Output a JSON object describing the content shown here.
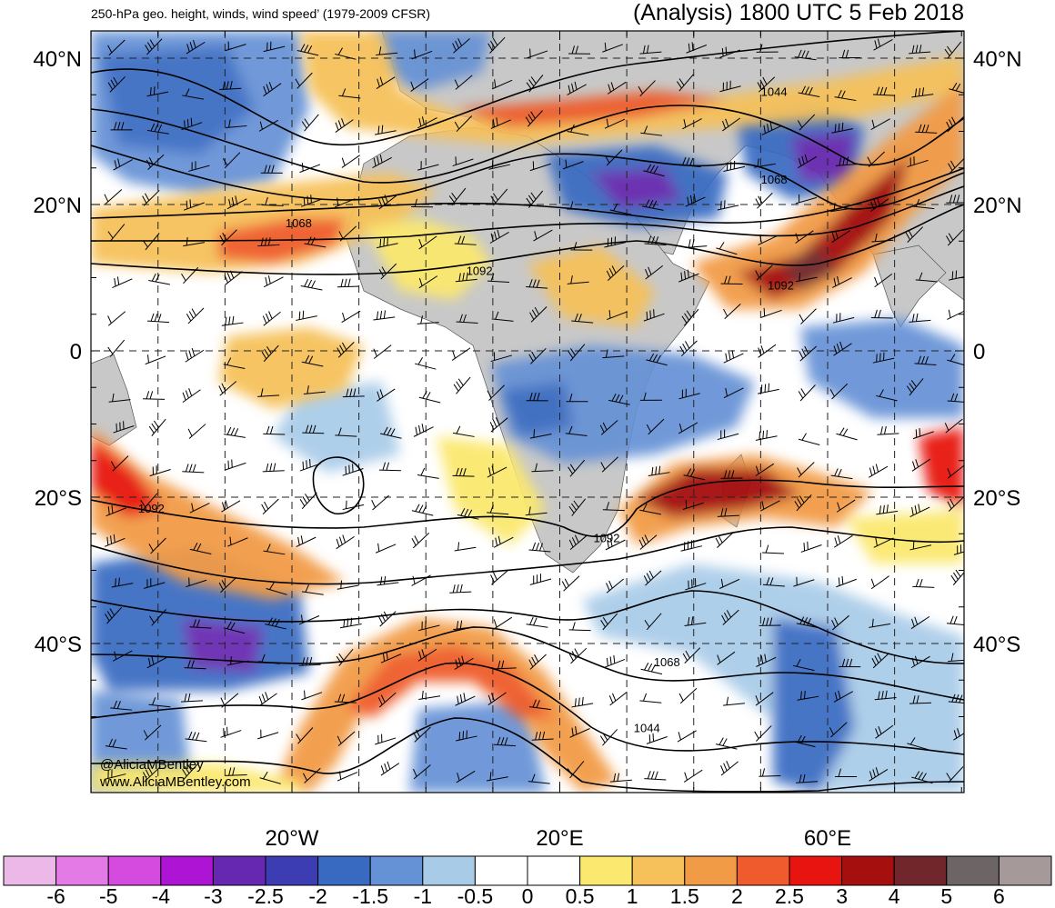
{
  "title_left": "250-hPa geo. height, winds, wind speed’ (1979-2009 CFSR)",
  "title_right": "(Analysis) 1800 UTC 5 Feb 2018",
  "credits": [
    "@AliciaMBentley",
    "www.AliciaMBentley.com"
  ],
  "lat_labels": [
    {
      "text": "40°N",
      "lat": 40
    },
    {
      "text": "20°N",
      "lat": 20
    },
    {
      "text": "0",
      "lat": 0
    },
    {
      "text": "20°S",
      "lat": -20
    },
    {
      "text": "40°S",
      "lat": -40
    }
  ],
  "lon_labels": [
    {
      "text": "20°W",
      "lon": -20
    },
    {
      "text": "20°E",
      "lon": 20
    },
    {
      "text": "60°E",
      "lon": 60
    }
  ],
  "contour_labels": [
    {
      "text": "1044",
      "lon": 52,
      "lat": 35
    },
    {
      "text": "1068",
      "lon": -19,
      "lat": 17
    },
    {
      "text": "1068",
      "lon": 52,
      "lat": 23
    },
    {
      "text": "1092",
      "lon": 8,
      "lat": 10.5
    },
    {
      "text": "1092",
      "lon": 53,
      "lat": 8.5
    },
    {
      "text": "1092",
      "lon": -41,
      "lat": -22
    },
    {
      "text": "1092",
      "lon": 27,
      "lat": -26
    },
    {
      "text": "1068",
      "lon": 36,
      "lat": -43
    },
    {
      "text": "1044",
      "lon": 33,
      "lat": -52
    }
  ],
  "colorbar": {
    "labels": [
      "-6",
      "-5",
      "-4",
      "-3",
      "-2.5",
      "-2",
      "-1.5",
      "-1",
      "-0.5",
      "0",
      "0.5",
      "1",
      "1.5",
      "2",
      "2.5",
      "3",
      "4",
      "5",
      "6"
    ],
    "colors": [
      "#ecb8e8",
      "#e37ae6",
      "#d54be0",
      "#ad14d4",
      "#6628b0",
      "#3c3db3",
      "#386ac2",
      "#6591d6",
      "#a8cbe8",
      "#ffffff",
      "#ffffff",
      "#fbe86e",
      "#f6c15a",
      "#f29b46",
      "#ef5b2c",
      "#e7140f",
      "#a50f0e",
      "#70262a",
      "#6d6466",
      "#a59999"
    ]
  },
  "map": {
    "lon_min": -50,
    "lon_max": 80,
    "lat_min": -57,
    "lat_max": 43,
    "gridline_lons": [
      -40,
      -30,
      -20,
      -10,
      0,
      10,
      20,
      30,
      40,
      50,
      60,
      70
    ],
    "gridline_lats": [
      -40,
      -20,
      0,
      20,
      40
    ],
    "land_color": "#c8c8c8",
    "contour_color": "#000000"
  }
}
